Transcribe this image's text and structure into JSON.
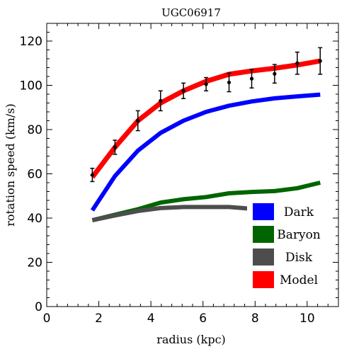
{
  "chart_data": {
    "type": "line",
    "title": "UGC06917",
    "xlabel": "radius (kpc)",
    "ylabel": "rotation speed (km/s)",
    "xlim": [
      0,
      11.2
    ],
    "ylim": [
      0,
      128
    ],
    "x_ticks": [
      0,
      2,
      4,
      6,
      8,
      10
    ],
    "y_ticks": [
      0,
      20,
      40,
      60,
      80,
      100,
      120
    ],
    "grid": false,
    "legend_position": "bottom-right",
    "series": [
      {
        "name": "Dark",
        "color": "#0000ff",
        "x": [
          1.75,
          2.62,
          3.5,
          4.37,
          5.25,
          6.12,
          7.0,
          7.87,
          8.75,
          9.62,
          10.5
        ],
        "y": [
          43.5,
          59,
          70.5,
          78.5,
          84,
          88,
          90.8,
          92.7,
          94.1,
          95.0,
          95.8
        ]
      },
      {
        "name": "Baryon",
        "color": "#006400",
        "x": [
          1.75,
          2.62,
          3.5,
          4.37,
          5.25,
          6.12,
          7.0,
          7.87,
          8.75,
          9.62,
          10.5
        ],
        "y": [
          39,
          41.5,
          44,
          47,
          48.5,
          49.5,
          51.2,
          51.8,
          52.2,
          53.5,
          56
        ]
      },
      {
        "name": "Disk",
        "color": "#4d4d4d",
        "x": [
          1.75,
          2.62,
          3.5,
          4.37,
          5.25,
          6.12,
          7.0,
          7.87,
          8.75,
          9.62,
          10.5
        ],
        "y": [
          39,
          41.2,
          43.2,
          44.5,
          45,
          45,
          45,
          44.2,
          43.2,
          42.5,
          42
        ]
      },
      {
        "name": "Model",
        "color": "#ff0000",
        "x": [
          1.75,
          2.62,
          3.5,
          4.37,
          5.25,
          6.12,
          7.0,
          7.87,
          8.75,
          9.62,
          10.5
        ],
        "y": [
          58.5,
          72,
          84,
          92,
          97.5,
          101.8,
          105,
          106.5,
          107.7,
          109.2,
          111
        ]
      }
    ],
    "observations": {
      "x": [
        1.75,
        2.62,
        3.5,
        4.37,
        5.25,
        6.12,
        7.0,
        7.87,
        8.75,
        9.62,
        10.5
      ],
      "y": [
        59.5,
        72,
        84,
        93,
        97.5,
        100.5,
        101.3,
        103,
        105.2,
        110,
        111
      ],
      "yerr": [
        3,
        3.2,
        4.5,
        4.5,
        3.5,
        3,
        4.2,
        4.2,
        4.2,
        5,
        6
      ]
    }
  }
}
